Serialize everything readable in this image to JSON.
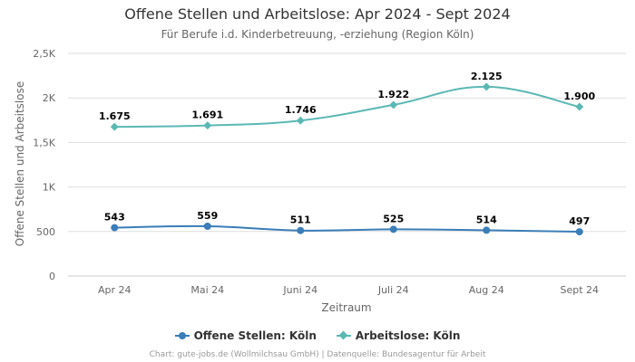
{
  "chart_data": {
    "type": "line",
    "title": "Offene Stellen und Arbeitslose: Apr 2024 - Sept 2024",
    "subtitle": "Für Berufe i.d. Kinderbetreuung, -erziehung (Region Köln)",
    "xlabel": "Zeitraum",
    "ylabel": "Offene Stellen und Arbeitslose",
    "categories": [
      "Apr 24",
      "Mai 24",
      "Juni 24",
      "Juli 24",
      "Aug 24",
      "Sept 24"
    ],
    "ylim": [
      0,
      2500
    ],
    "yticks": [
      0,
      500,
      1000,
      1500,
      2000,
      2500
    ],
    "ytick_labels": [
      "0",
      "500",
      "1K",
      "1,5K",
      "2K",
      "2,5K"
    ],
    "grid": true,
    "legend_position": "bottom",
    "series": [
      {
        "name": "Offene Stellen: Köln",
        "values": [
          543,
          559,
          511,
          525,
          514,
          497
        ],
        "labels": [
          "543",
          "559",
          "511",
          "525",
          "514",
          "497"
        ],
        "color": "#3a7db8",
        "marker": "circle"
      },
      {
        "name": "Arbeitslose: Köln",
        "values": [
          1675,
          1691,
          1746,
          1922,
          2125,
          1900
        ],
        "labels": [
          "1.675",
          "1.691",
          "1.746",
          "1.922",
          "2.125",
          "1.900"
        ],
        "color": "#5ab8b4",
        "marker": "diamond"
      }
    ]
  },
  "credits": "Chart: gute-jobs.de (Wollmilchsau GmbH) | Datenquelle: Bundesagentur für Arbeit"
}
